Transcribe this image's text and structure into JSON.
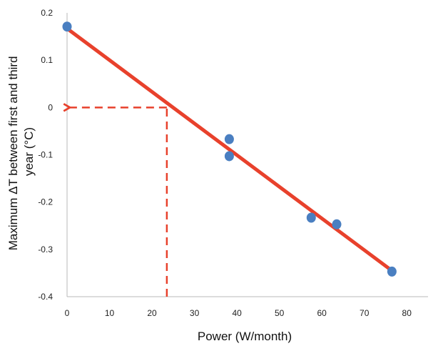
{
  "chart_data": {
    "type": "scatter",
    "title": "",
    "xlabel": "Power (W/month)",
    "ylabel_line1": "Maximum ΔT between first and third",
    "ylabel_line2": "year (°C)",
    "xlim": [
      0,
      85
    ],
    "ylim": [
      -0.4,
      0.2
    ],
    "x_ticks": [
      0,
      10,
      20,
      30,
      40,
      50,
      60,
      70,
      80
    ],
    "x_tick_labels": [
      "0",
      "10",
      "20",
      "30",
      "40",
      "50",
      "60",
      "70",
      "80"
    ],
    "y_ticks": [
      0.2,
      0.1,
      0,
      -0.1,
      -0.2,
      -0.3,
      -0.4
    ],
    "y_tick_labels": [
      "0.2",
      "0.1",
      "0",
      "-0.1",
      "-0.2",
      "-0.3",
      "-0.4"
    ],
    "grid": false,
    "series": [
      {
        "points": [
          {
            "x": 0,
            "y": 0.171
          },
          {
            "x": 38.2,
            "y": -0.067
          },
          {
            "x": 38.2,
            "y": -0.103
          },
          {
            "x": 57.5,
            "y": -0.233
          },
          {
            "x": 63.5,
            "y": -0.247
          },
          {
            "x": 76.5,
            "y": -0.347
          }
        ],
        "color": "#4a7fc1"
      }
    ],
    "trendline": {
      "x": [
        0,
        76.5
      ],
      "y": [
        0.167,
        -0.345
      ],
      "color": "#e8412c"
    },
    "annotation": {
      "type": "dashed-arrow",
      "x_intercept": 23.5,
      "y_value": 0,
      "color": "#e8412c"
    }
  }
}
